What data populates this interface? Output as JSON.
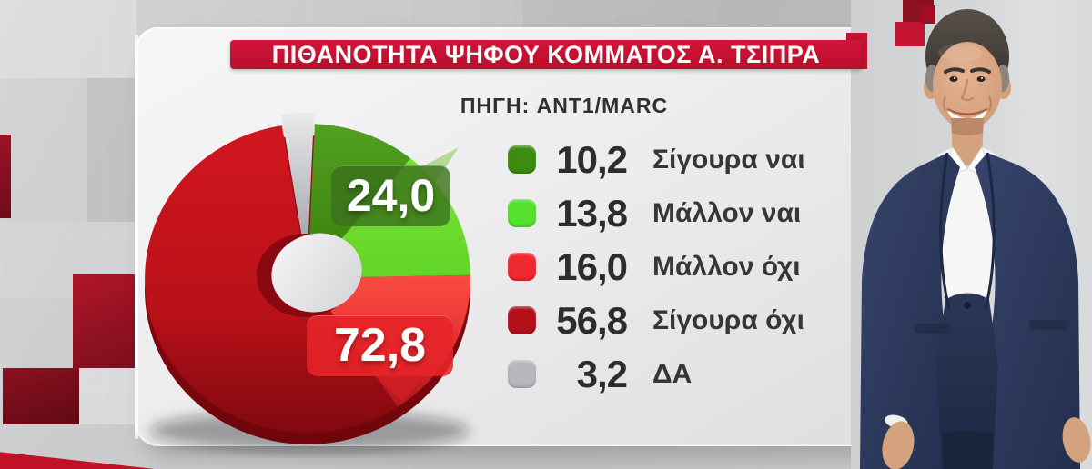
{
  "title": "ΠΙΘΑΝΟΤΗΤΑ ΨΗΦΟΥ ΚΟΜΜΑΤΟΣ Α. ΤΣΙΠΡΑ",
  "source": "ΠΗΓΗ: ANT1/MARC",
  "chart_data": {
    "type": "pie",
    "title": "ΠΙΘΑΝΟΤΗΤΑ ΨΗΦΟΥ ΚΟΜΜΑΤΟΣ Α. ΤΣΙΠΡΑ",
    "source": "ΠΗΓΗ: ANT1/MARC",
    "donut": true,
    "start_angle_deg": 2.5,
    "legend_position": "right",
    "slices": [
      {
        "label": "Σίγουρα ναι",
        "value": 10.2,
        "display": "10,2",
        "color": "#3c8c10",
        "pie_colors": [
          "#529f21",
          "#37800a"
        ],
        "exploded": false
      },
      {
        "label": "Μάλλον ναι",
        "value": 13.8,
        "display": "13,8",
        "color": "#55e22e",
        "pie_colors": [
          "#79e134",
          "#63d528"
        ],
        "exploded": false
      },
      {
        "label": "Μάλλον όχι",
        "value": 16.0,
        "display": "16,0",
        "color": "#f0282f",
        "pie_colors": [
          "#f84b42",
          "#e01e26"
        ],
        "exploded": false
      },
      {
        "label": "Σίγουρα όχι",
        "value": 56.8,
        "display": "56,8",
        "color": "#b50f18",
        "pie_colors": [
          "#d2161f",
          "#a80d15"
        ],
        "exploded": false
      },
      {
        "label": "ΔΑ",
        "value": 3.2,
        "display": "3,2",
        "color": "#b7b8bb",
        "pie_colors": [
          "#e8e9eb",
          "#97999e"
        ],
        "exploded": true
      }
    ],
    "callouts": [
      {
        "text": "24,0",
        "color": "#3a701c"
      },
      {
        "text": "72,8",
        "color": "#e72429"
      }
    ]
  }
}
